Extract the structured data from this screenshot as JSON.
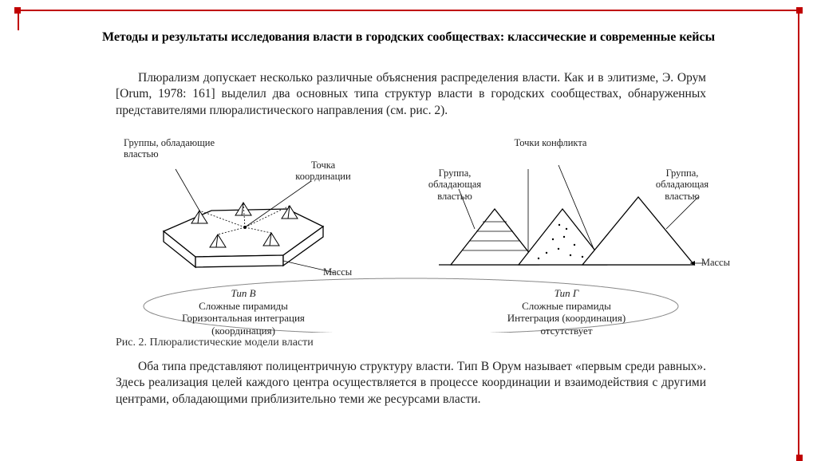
{
  "frame": {
    "color": "#c00000"
  },
  "title": "Методы и результаты исследования власти в городских сообществах: классические и современные кейсы",
  "paragraph1": "Плюрализм допускает несколько различные объяснения распределения власти. Как и в элитизме, Э. Орум [Orum, 1978: 161] выделил два основных типа структур власти в городских сообществах, обнаруженных представителями плюралистического направления (см. рис. 2).",
  "figure_caption": "Рис. 2. Плюралистические модели власти",
  "paragraph2": "Оба типа представляют полицентричную структуру власти. Тип В Орум называет «первым среди равных». Здесь реализация целей каждого центра осуществляется в процессе координации и взаимодействия с другими центрами, обладающими приблизительно теми же ресурсами власти.",
  "diagram": {
    "labels": {
      "groups_power": "Группы, обладающие\nвластью",
      "coord_point": "Точка\nкоординации",
      "masses": "Массы",
      "conflict_points": "Точки конфликта",
      "group_power_sing": "Группа,\nобладающая\nвластью"
    },
    "typeB": {
      "title": "Тип В",
      "line1": "Сложные пирамиды",
      "line2": "Горизонтальная интеграция",
      "line3": "(координация)"
    },
    "typeG": {
      "title": "Тип Г",
      "line1": "Сложные пирамиды",
      "line2": "Интеграция (координация)",
      "line3": "отсутствует"
    },
    "colors": {
      "stroke": "#000000",
      "fill_bg": "#ffffff"
    }
  }
}
